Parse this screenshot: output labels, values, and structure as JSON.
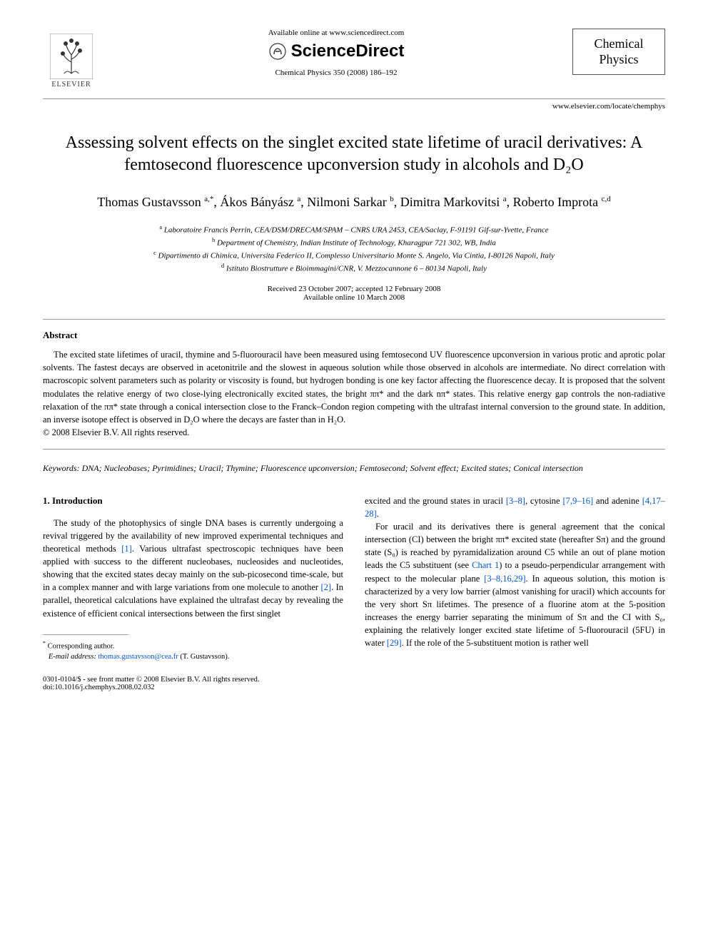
{
  "header": {
    "available_online": "Available online at www.sciencedirect.com",
    "sciencedirect": "ScienceDirect",
    "journal_ref": "Chemical Physics 350 (2008) 186–192",
    "journal_box_line1": "Chemical",
    "journal_box_line2": "Physics",
    "journal_url": "www.elsevier.com/locate/chemphys",
    "elsevier_label": "ELSEVIER"
  },
  "article": {
    "title": "Assessing solvent effects on the singlet excited state lifetime of uracil derivatives: A femtosecond fluorescence upconversion study in alcohols and D₂O",
    "authors_html": "Thomas Gustavsson <sup>a,*</sup>, Ákos Bányász <sup>a</sup>, Nilmoni Sarkar <sup>b</sup>, Dimitra Markovitsi <sup>a</sup>, Roberto Improta <sup>c,d</sup>",
    "affiliations": {
      "a": "Laboratoire Francis Perrin, CEA/DSM/DRECAM/SPAM – CNRS URA 2453, CEA/Saclay, F-91191 Gif-sur-Yvette, France",
      "b": "Department of Chemistry, Indian Institute of Technology, Kharagpur 721 302, WB, India",
      "c": "Dipartimento di Chimica, Universita Federico II, Complesso Universitario Monte S. Angelo, Via Cintia, I-80126 Napoli, Italy",
      "d": "Istituto Biostrutture e Bioimmagini/CNR, V. Mezzocannone 6 – 80134 Napoli, Italy"
    },
    "dates_line1": "Received 23 October 2007; accepted 12 February 2008",
    "dates_line2": "Available online 10 March 2008"
  },
  "abstract": {
    "heading": "Abstract",
    "text": "The excited state lifetimes of uracil, thymine and 5-fluorouracil have been measured using femtosecond UV fluorescence upconversion in various protic and aprotic polar solvents. The fastest decays are observed in acetonitrile and the slowest in aqueous solution while those observed in alcohols are intermediate. No direct correlation with macroscopic solvent parameters such as polarity or viscosity is found, but hydrogen bonding is one key factor affecting the fluorescence decay. It is proposed that the solvent modulates the relative energy of two close-lying electronically excited states, the bright ππ* and the dark nπ* states. This relative energy gap controls the non-radiative relaxation of the ππ* state through a conical intersection close to the Franck–Condon region competing with the ultrafast internal conversion to the ground state. In addition, an inverse isotope effect is observed in D₂O where the decays are faster than in H₂O.",
    "copyright": "© 2008 Elsevier B.V. All rights reserved."
  },
  "keywords": {
    "label": "Keywords:",
    "text": "DNA; Nucleobases; Pyrimidines; Uracil; Thymine; Fluorescence upconversion; Femtosecond; Solvent effect; Excited states; Conical intersection"
  },
  "body": {
    "section_num": "1.",
    "section_title": "Introduction",
    "col1_para1_before": "The study of the photophysics of single DNA bases is currently undergoing a revival triggered by the availability of new improved experimental techniques and theoretical methods ",
    "ref1": "[1]",
    "col1_para1_mid1": ". Various ultrafast spectroscopic techniques have been applied with success to the different nucleobases, nucleosides and nucleotides, showing that the excited states decay mainly on the sub-picosecond time-scale, but in a complex manner and with large variations from one molecule to another ",
    "ref2": "[2]",
    "col1_para1_mid2": ". In parallel, theoretical calculations have explained the ultrafast decay by revealing the existence of efficient conical intersections between the first singlet",
    "col2_cont_before": "excited and the ground states in uracil ",
    "ref38": "[3–8]",
    "col2_cont_mid1": ", cytosine ",
    "ref7916": "[7,9–16]",
    "col2_cont_mid2": " and adenine ",
    "ref41728": "[4,17–28]",
    "col2_cont_end": ".",
    "col2_para2_before": "For uracil and its derivatives there is general agreement that the conical intersection (CI) between the bright ππ* excited state (hereafter Sπ) and the ground state (S₀) is reached by pyramidalization around C5 while an out of plane motion leads the C5 substituent (see ",
    "chart1": "Chart 1",
    "col2_para2_mid1": ") to a pseudo-perpendicular arrangement with respect to the molecular plane ",
    "ref381629": "[3–8,16,29]",
    "col2_para2_mid2": ". In aqueous solution, this motion is characterized by a very low barrier (almost vanishing for uracil) which accounts for the very short Sπ lifetimes. The presence of a fluorine atom at the 5-position increases the energy barrier separating the minimum of Sπ and the CI with S₀, explaining the relatively longer excited state lifetime of 5-fluorouracil (5FU) in water ",
    "ref29": "[29]",
    "col2_para2_end": ". If the role of the 5-substituent motion is rather well"
  },
  "footnote": {
    "corr": "Corresponding author.",
    "email_label": "E-mail address:",
    "email": "thomas.gustavsson@cea.fr",
    "email_person": "(T. Gustavsson)."
  },
  "footer": {
    "left_line1": "0301-0104/$ - see front matter © 2008 Elsevier B.V. All rights reserved.",
    "left_line2": "doi:10.1016/j.chemphys.2008.02.032"
  },
  "colors": {
    "link": "#0056d6",
    "rule": "#999999",
    "text": "#000000",
    "background": "#ffffff"
  }
}
